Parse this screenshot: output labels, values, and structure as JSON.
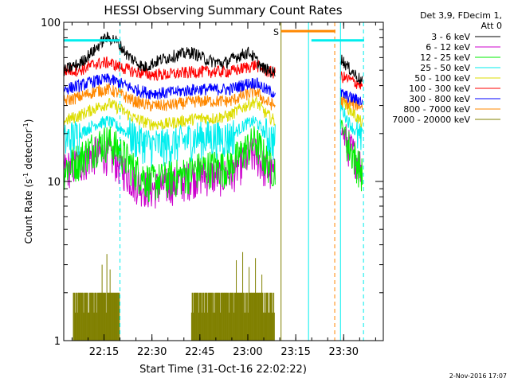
{
  "chart_data": {
    "type": "line",
    "title": "HESSI Observing Summary Count Rates",
    "xlabel": "Start Time (31-Oct-16 22:02:22)",
    "ylabel_main": "Count Rate (s",
    "ylabel_sup1": "-1",
    "ylabel_mid": " detector",
    "ylabel_sup2": "-1",
    "ylabel_end": ")",
    "y_scale": "log",
    "ylim": [
      1,
      100
    ],
    "xlim_minutes": [
      0,
      100
    ],
    "x_ticks": [
      {
        "label": "22:15",
        "value": 12.6
      },
      {
        "label": "22:30",
        "value": 27.6
      },
      {
        "label": "22:45",
        "value": 42.6
      },
      {
        "label": "23:00",
        "value": 57.6
      },
      {
        "label": "23:15",
        "value": 72.6
      },
      {
        "label": "23:30",
        "value": 87.6
      }
    ],
    "y_ticks": [
      {
        "label": "1",
        "value": 1
      },
      {
        "label": "10",
        "value": 10
      },
      {
        "label": "100",
        "value": 100
      }
    ],
    "legend_header": [
      "Det 3,9, FDecim 1,",
      "Att 0"
    ],
    "legend_position": "right",
    "footer_date": "2-Nov-2016 17:07",
    "annotation_s": "S",
    "series": [
      {
        "name": "3 - 6 keV",
        "color": "#000000",
        "points": [
          [
            0,
            50
          ],
          [
            5,
            55
          ],
          [
            10,
            68
          ],
          [
            13,
            80
          ],
          [
            16,
            78
          ],
          [
            20,
            62
          ],
          [
            25,
            52
          ],
          [
            30,
            58
          ],
          [
            35,
            62
          ],
          [
            40,
            65
          ],
          [
            45,
            58
          ],
          [
            50,
            55
          ],
          [
            55,
            62
          ],
          [
            58,
            65
          ],
          [
            62,
            52
          ],
          [
            66,
            48
          ],
          [
            86.5,
            60
          ],
          [
            89,
            52
          ],
          [
            93.5,
            42
          ]
        ]
      },
      {
        "name": "6 - 12 keV",
        "color": "#cc00cc",
        "points": [
          [
            0,
            12
          ],
          [
            5,
            13
          ],
          [
            10,
            15
          ],
          [
            14,
            15
          ],
          [
            17,
            13
          ],
          [
            22,
            10
          ],
          [
            27,
            9
          ],
          [
            32,
            9.5
          ],
          [
            37,
            10
          ],
          [
            42,
            11
          ],
          [
            47,
            11
          ],
          [
            52,
            11
          ],
          [
            57,
            14
          ],
          [
            60,
            15
          ],
          [
            63,
            12
          ],
          [
            66,
            11
          ],
          [
            86.5,
            22
          ],
          [
            89,
            17
          ],
          [
            93.5,
            12
          ]
        ]
      },
      {
        "name": "12 - 25 keV",
        "color": "#00ee00",
        "points": [
          [
            0,
            12
          ],
          [
            5,
            14
          ],
          [
            10,
            17
          ],
          [
            14,
            18
          ],
          [
            17,
            16
          ],
          [
            22,
            12
          ],
          [
            27,
            10
          ],
          [
            32,
            10.5
          ],
          [
            37,
            11
          ],
          [
            42,
            12
          ],
          [
            47,
            12.5
          ],
          [
            52,
            12.5
          ],
          [
            57,
            16
          ],
          [
            60,
            18
          ],
          [
            63,
            14
          ],
          [
            66,
            12
          ],
          [
            86.5,
            24
          ],
          [
            89,
            17
          ],
          [
            93.5,
            11
          ]
        ]
      },
      {
        "name": "25 - 50 keV",
        "color": "#00eeee",
        "points": [
          [
            0,
            18
          ],
          [
            5,
            20
          ],
          [
            10,
            23
          ],
          [
            14,
            24
          ],
          [
            17,
            22
          ],
          [
            22,
            19
          ],
          [
            27,
            17
          ],
          [
            32,
            17
          ],
          [
            37,
            18
          ],
          [
            42,
            19
          ],
          [
            47,
            19
          ],
          [
            52,
            19
          ],
          [
            57,
            23
          ],
          [
            60,
            24
          ],
          [
            63,
            20
          ],
          [
            66,
            18
          ],
          [
            86.5,
            30
          ],
          [
            89,
            24
          ],
          [
            93.5,
            17
          ]
        ]
      },
      {
        "name": "50 - 100 keV",
        "color": "#dddd00",
        "points": [
          [
            0,
            24
          ],
          [
            5,
            26
          ],
          [
            10,
            29
          ],
          [
            14,
            31
          ],
          [
            17,
            29
          ],
          [
            22,
            25
          ],
          [
            27,
            23
          ],
          [
            32,
            23
          ],
          [
            37,
            24
          ],
          [
            42,
            25
          ],
          [
            47,
            25
          ],
          [
            52,
            26
          ],
          [
            57,
            30
          ],
          [
            60,
            32
          ],
          [
            63,
            27
          ],
          [
            66,
            24
          ],
          [
            86.5,
            34
          ],
          [
            89,
            29
          ],
          [
            93.5,
            23
          ]
        ]
      },
      {
        "name": "100 - 300 keV",
        "color": "#ff0000",
        "points": [
          [
            0,
            50
          ],
          [
            5,
            50
          ],
          [
            10,
            55
          ],
          [
            14,
            56
          ],
          [
            17,
            53
          ],
          [
            22,
            49
          ],
          [
            27,
            47
          ],
          [
            32,
            47
          ],
          [
            37,
            48
          ],
          [
            42,
            49
          ],
          [
            47,
            49
          ],
          [
            52,
            49
          ],
          [
            57,
            52
          ],
          [
            60,
            54
          ],
          [
            63,
            50
          ],
          [
            66,
            48
          ],
          [
            86.5,
            46
          ],
          [
            89,
            44
          ],
          [
            93.5,
            40
          ]
        ]
      },
      {
        "name": "300 - 800 keV",
        "color": "#0000ff",
        "points": [
          [
            0,
            38
          ],
          [
            5,
            40
          ],
          [
            10,
            43
          ],
          [
            14,
            44
          ],
          [
            17,
            42
          ],
          [
            22,
            38
          ],
          [
            27,
            36
          ],
          [
            32,
            36
          ],
          [
            37,
            37
          ],
          [
            42,
            38
          ],
          [
            47,
            38
          ],
          [
            52,
            38
          ],
          [
            57,
            41
          ],
          [
            60,
            42
          ],
          [
            63,
            38
          ],
          [
            66,
            36
          ],
          [
            86.5,
            36
          ],
          [
            89,
            34
          ],
          [
            93.5,
            32
          ]
        ]
      },
      {
        "name": "800 - 7000 keV",
        "color": "#ff8800",
        "points": [
          [
            0,
            32
          ],
          [
            5,
            34
          ],
          [
            10,
            37
          ],
          [
            14,
            38
          ],
          [
            17,
            36
          ],
          [
            22,
            32
          ],
          [
            27,
            30
          ],
          [
            32,
            30
          ],
          [
            37,
            31
          ],
          [
            42,
            32
          ],
          [
            47,
            32
          ],
          [
            52,
            32
          ],
          [
            57,
            35
          ],
          [
            60,
            37
          ],
          [
            63,
            32
          ],
          [
            66,
            30
          ],
          [
            86.5,
            32
          ],
          [
            89,
            31
          ],
          [
            93.5,
            30
          ]
        ]
      },
      {
        "name": "7000 - 20000 keV",
        "color": "#808000",
        "points": []
      }
    ],
    "overlay_lines": [
      {
        "name": "top-cyan-bar-1",
        "color": "#00eeee",
        "x": [
          0,
          17.6
        ],
        "y": 77
      },
      {
        "name": "top-cyan-bar-2",
        "color": "#00eeee",
        "x": [
          77.5,
          94
        ],
        "y": 77
      },
      {
        "name": "top-orange-bar",
        "color": "#ff8800",
        "x": [
          68,
          85
        ],
        "y": 88
      }
    ],
    "vlines": [
      {
        "name": "cyan-dashed-1",
        "color": "#00eeee",
        "x": 17.6,
        "dashed": true
      },
      {
        "name": "olive-solid-1",
        "color": "#808000",
        "x": 68.0,
        "dashed": false
      },
      {
        "name": "cyan-solid-1",
        "color": "#00eeee",
        "x": 76.6,
        "dashed": false
      },
      {
        "name": "orange-dashed-1",
        "color": "#ff8800",
        "x": 84.8,
        "dashed": true
      },
      {
        "name": "cyan-solid-2",
        "color": "#00eeee",
        "x": 86.6,
        "dashed": false
      },
      {
        "name": "cyan-dashed-2",
        "color": "#00eeee",
        "x": 93.8,
        "dashed": true
      }
    ],
    "olive_bars": {
      "color": "#808000",
      "segments": [
        [
          3,
          17.5,
          2.0
        ],
        [
          40,
          66,
          2.0
        ]
      ],
      "spikes": [
        [
          12,
          3.0
        ],
        [
          13.5,
          3.5
        ],
        [
          14.5,
          2.8
        ],
        [
          54,
          3.2
        ],
        [
          56,
          3.6
        ],
        [
          58,
          2.9
        ],
        [
          60,
          3.3
        ],
        [
          62,
          2.6
        ]
      ]
    }
  }
}
